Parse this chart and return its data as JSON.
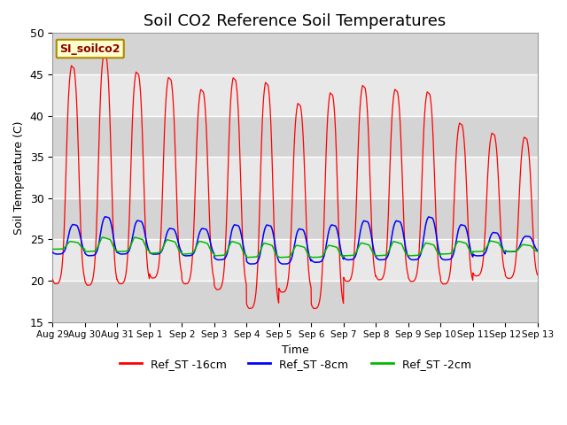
{
  "title": "Soil CO2 Reference Soil Temperatures",
  "xlabel": "Time",
  "ylabel": "Soil Temperature (C)",
  "ylim": [
    15,
    50
  ],
  "annotation_text": "SI_soilco2",
  "legend_labels": [
    "Ref_ST -16cm",
    "Ref_ST -8cm",
    "Ref_ST -2cm"
  ],
  "legend_colors": [
    "#ff0000",
    "#0000ff",
    "#00bb00"
  ],
  "xtick_labels": [
    "Aug 29",
    "Aug 30",
    "Aug 31",
    "Sep 1",
    "Sep 2",
    "Sep 3",
    "Sep 4",
    "Sep 5",
    "Sep 6",
    "Sep 7",
    "Sep 8",
    "Sep 9",
    "Sep 10",
    "Sep 11",
    "Sep 12",
    "Sep 13"
  ],
  "background_color": "#ffffff",
  "plot_bg_color": "#e8e8e8",
  "stripe_color": "#d0d0d0",
  "title_fontsize": 13,
  "annotation_bg": "#ffffcc",
  "annotation_border": "#aa8800",
  "red_peaks": [
    47.0,
    48.5,
    46.2,
    45.5,
    44.0,
    45.5,
    45.0,
    42.3,
    43.7,
    44.5,
    44.0,
    43.7,
    39.8,
    38.5,
    38.0
  ],
  "red_valleys": [
    19.5,
    19.3,
    19.5,
    20.2,
    19.5,
    18.8,
    16.5,
    18.5,
    16.5,
    19.8,
    20.0,
    19.8,
    19.5,
    20.5,
    20.2
  ],
  "blue_peaks": [
    27.0,
    28.0,
    27.5,
    26.5,
    26.5,
    27.0,
    27.0,
    26.5,
    27.0,
    27.5,
    27.5,
    28.0,
    27.0,
    26.0,
    25.5
  ],
  "blue_valleys": [
    23.2,
    23.0,
    23.2,
    23.2,
    23.0,
    22.5,
    22.0,
    22.0,
    22.2,
    22.5,
    22.5,
    22.5,
    22.5,
    23.0,
    23.5
  ],
  "green_peaks": [
    24.9,
    25.5,
    25.5,
    25.2,
    25.0,
    25.0,
    24.8,
    24.5,
    24.5,
    24.8,
    25.0,
    24.8,
    25.0,
    25.0,
    24.5
  ],
  "green_valleys": [
    23.8,
    23.5,
    23.5,
    23.3,
    23.2,
    23.0,
    22.8,
    22.8,
    22.8,
    23.0,
    23.0,
    23.0,
    23.2,
    23.5,
    23.5
  ],
  "n_days": 15,
  "points_per_day": 144,
  "peak_hour": 14,
  "valley_hour": 4,
  "blue_peak_hour": 15,
  "blue_valley_hour": 6,
  "green_peak_hour": 13,
  "green_valley_hour": 7
}
